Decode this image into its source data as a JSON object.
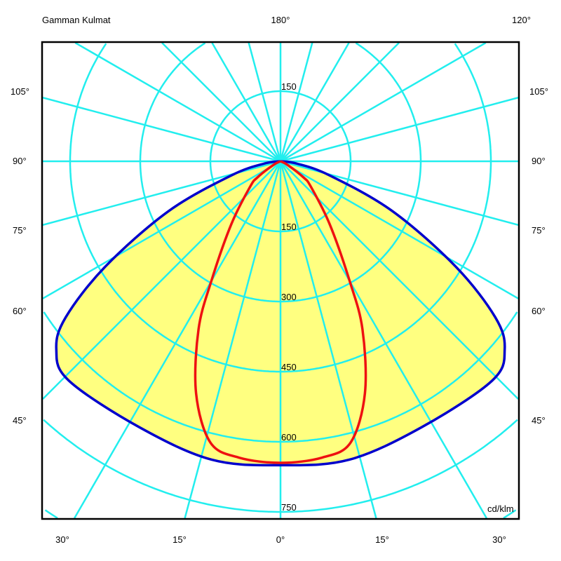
{
  "chart_data": {
    "type": "polar",
    "title": "Gamman Kulmat",
    "unit": "cd/klm",
    "radial_ticks": [
      150,
      300,
      450,
      600,
      750
    ],
    "top_radial_label": "150",
    "radial_max": 750,
    "angle_step_deg": 15,
    "angle_labels": {
      "top": [
        "180°",
        "120°"
      ],
      "left": [
        "105°",
        "90°",
        "75°",
        "60°",
        "45°"
      ],
      "right": [
        "105°",
        "90°",
        "75°",
        "60°",
        "45°"
      ],
      "bottom": [
        "30°",
        "15°",
        "0°",
        "15°",
        "30°"
      ]
    },
    "grid": true,
    "series": [
      {
        "color": "#0000cc",
        "fill": "#ffff80",
        "angles": [
          0,
          13,
          28,
          44,
          50,
          54,
          59,
          66,
          74,
          82,
          90
        ],
        "values": [
          650,
          655,
          644,
          652,
          626,
          568,
          437,
          262,
          109,
          35,
          0
        ]
      },
      {
        "color": "#ee1111",
        "angles": [
          0,
          8,
          14,
          20,
          26,
          30,
          38,
          50,
          55,
          63,
          90
        ],
        "values": [
          645,
          640,
          620,
          528,
          400,
          296,
          171,
          85,
          60,
          17,
          0
        ]
      }
    ]
  },
  "colors": {
    "grid": "#22eeee",
    "frame": "#000000"
  }
}
